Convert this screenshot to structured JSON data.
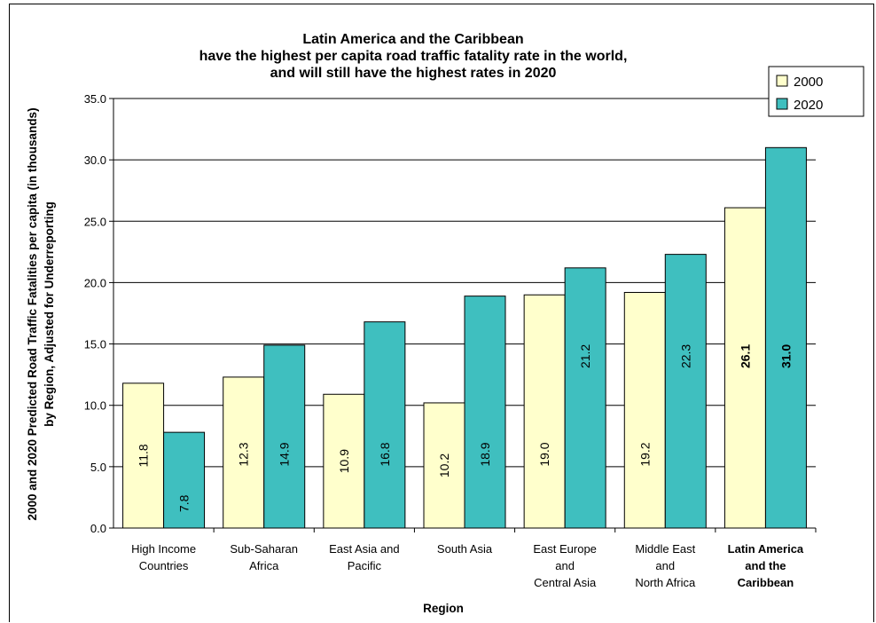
{
  "chart_data": {
    "type": "bar",
    "title_lines": [
      "Latin America and the Caribbean",
      "have the highest per capita road traffic fatality rate in the world,",
      "and will still have the highest rates in 2020"
    ],
    "xlabel": "Region",
    "ylabel_lines": [
      "2000 and 2020 Predicted Road Traffic Fatalities per capita (in thousands)",
      "by Region, Adjusted for Underreporting"
    ],
    "ylim": [
      0,
      35
    ],
    "yticks": [
      "0.0",
      "5.0",
      "10.0",
      "15.0",
      "20.0",
      "25.0",
      "30.0",
      "35.0"
    ],
    "grid": true,
    "legend_position": "top-right",
    "categories": [
      {
        "lines": [
          "High Income",
          "Countries"
        ],
        "bold": false
      },
      {
        "lines": [
          "Sub-Saharan",
          "Africa"
        ],
        "bold": false
      },
      {
        "lines": [
          "East Asia and",
          "Pacific"
        ],
        "bold": false
      },
      {
        "lines": [
          "South Asia"
        ],
        "bold": false
      },
      {
        "lines": [
          "East Europe",
          "and",
          "Central Asia"
        ],
        "bold": false
      },
      {
        "lines": [
          "Middle East",
          "and",
          "North Africa"
        ],
        "bold": false
      },
      {
        "lines": [
          "Latin America",
          "and the",
          "Caribbean"
        ],
        "bold": true
      }
    ],
    "series": [
      {
        "name": "2000",
        "color": "#ffffcc",
        "values": [
          11.8,
          12.3,
          10.9,
          10.2,
          19.0,
          19.2,
          26.1
        ],
        "labels": [
          "11.8",
          "12.3",
          "10.9",
          "10.2",
          "19.0",
          "19.2",
          "26.1"
        ]
      },
      {
        "name": "2020",
        "color": "#3fbfbf",
        "values": [
          7.8,
          14.9,
          16.8,
          18.9,
          21.2,
          22.3,
          31.0
        ],
        "labels": [
          "7.8",
          "14.9",
          "16.8",
          "18.9",
          "21.2",
          "22.3",
          "31.0"
        ]
      }
    ]
  }
}
